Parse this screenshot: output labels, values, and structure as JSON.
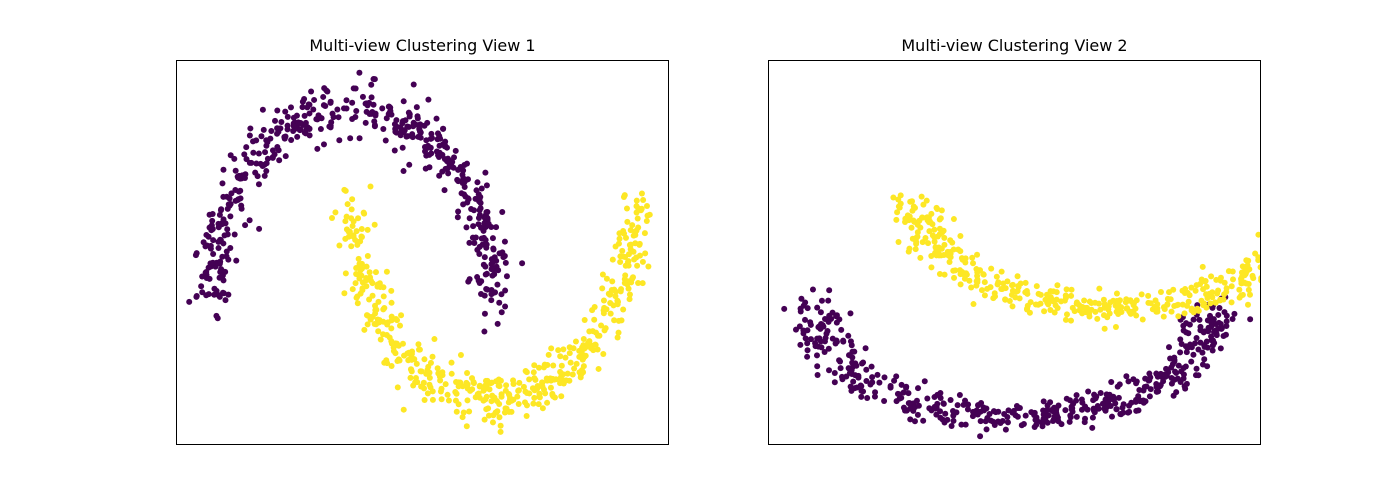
{
  "chart_data": [
    {
      "type": "scatter",
      "title": "Multi-view Clustering View 1",
      "xlabel": "",
      "ylabel": "",
      "xlim": [
        -1.25,
        2.25
      ],
      "ylim": [
        -0.75,
        1.25
      ],
      "grid": false,
      "ticks": "none",
      "colors": {
        "cluster_0": "#440154",
        "cluster_1": "#fde725"
      },
      "series": [
        {
          "name": "cluster_0",
          "shape": "arc",
          "center": [
            0.0,
            0.0
          ],
          "radius": [
            1.0,
            1.0
          ],
          "angle_start_deg": 0,
          "angle_end_deg": 180,
          "noise": 0.07,
          "count": 500
        },
        {
          "name": "cluster_1",
          "shape": "arc",
          "center": [
            1.0,
            0.5
          ],
          "radius": [
            1.0,
            -1.0
          ],
          "angle_start_deg": 0,
          "angle_end_deg": 180,
          "noise": 0.07,
          "count": 500
        }
      ]
    },
    {
      "type": "scatter",
      "title": "Multi-view Clustering View 2",
      "xlabel": "",
      "ylabel": "",
      "xlim": [
        -1.25,
        1.25
      ],
      "ylim": [
        -1.25,
        2.25
      ],
      "grid": false,
      "ticks": "none",
      "colors": {
        "cluster_0": "#440154",
        "cluster_1": "#fde725"
      },
      "series": [
        {
          "name": "cluster_0",
          "shape": "arc",
          "center": [
            0.0,
            0.0
          ],
          "radius": [
            1.0,
            1.0
          ],
          "angle_start_deg": 90,
          "angle_end_deg": 270,
          "mapping": "rotated",
          "noise": 0.07,
          "count": 500
        },
        {
          "name": "cluster_1",
          "shape": "arc",
          "center": [
            0.5,
            1.0
          ],
          "radius": [
            -1.0,
            1.0
          ],
          "angle_start_deg": 90,
          "angle_end_deg": 270,
          "mapping": "rotated",
          "noise": 0.07,
          "count": 500
        }
      ]
    }
  ]
}
